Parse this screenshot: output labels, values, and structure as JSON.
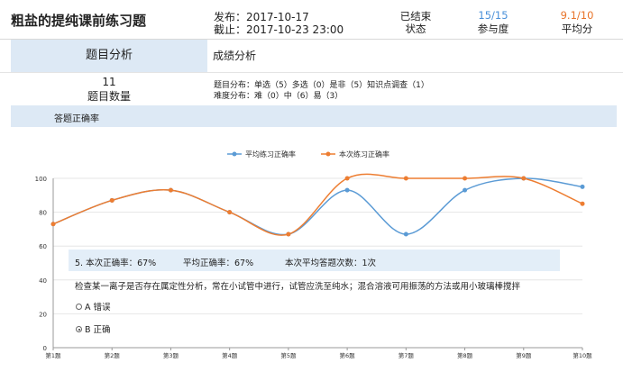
{
  "header": {
    "title": "粗盐的提纯课前练习题",
    "publish": "发布：2017-10-17",
    "deadline": "截止：2017-10-23 23:00",
    "status_value": "已结束",
    "status_label": "状态",
    "participation_value": "15/15",
    "participation_label": "参与度",
    "avg_value": "9.1/10",
    "avg_label": "平均分",
    "colors": {
      "participation": "#4a90d9",
      "avg": "#e8742a"
    }
  },
  "tabs": {
    "active": "题目分析",
    "second": "成绩分析"
  },
  "summary": {
    "count_value": "11",
    "count_label": "题目数量",
    "type_dist": "题目分布：单选（5）多选（0）是非（5）知识点调查（1）",
    "diff_dist": "难度分布：难（0）中（6）易（3）"
  },
  "section_title": "答题正确率",
  "chart_data": {
    "type": "line",
    "categories": [
      "第1题",
      "第2题",
      "第3题",
      "第4题",
      "第5题",
      "第6题",
      "第7题",
      "第8题",
      "第9题",
      "第10题"
    ],
    "series": [
      {
        "name": "平均练习正确率",
        "color": "#5b9bd5",
        "values": [
          73,
          87,
          93,
          80,
          67,
          93,
          67,
          93,
          100,
          95
        ]
      },
      {
        "name": "本次练习正确率",
        "color": "#ed7d31",
        "values": [
          73,
          87,
          93,
          80,
          67,
          100,
          100,
          100,
          100,
          85
        ]
      }
    ],
    "ylim": [
      0,
      100
    ],
    "yticks": [
      0,
      20,
      40,
      60,
      80,
      100
    ],
    "legend": "top-center",
    "grid": true
  },
  "tooltip": {
    "question": "5. 本次正确率：67%",
    "avg": "平均正确率：67%",
    "count": "本次平均答题次数：1次",
    "text": "检查某一离子是否存在属定性分析，常在小试管中进行，试管应洗至纯水；混合溶液可用振荡的方法或用小玻璃棒搅拌",
    "options": [
      {
        "label": "A 错误",
        "selected": false
      },
      {
        "label": "B 正确",
        "selected": true
      }
    ]
  }
}
